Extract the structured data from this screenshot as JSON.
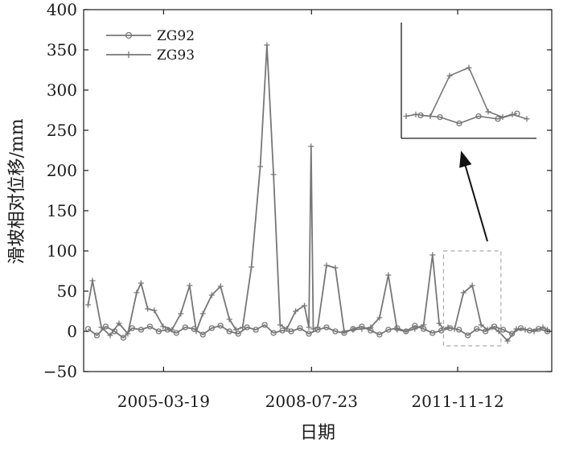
{
  "chart_data": {
    "type": "line",
    "title": "",
    "xlabel": "日期",
    "ylabel": "滑坡相对位移/mm",
    "ylim": [
      -50,
      400
    ],
    "xlim": [
      2003.4,
      2014.0
    ],
    "y_ticks": [
      -50,
      0,
      50,
      100,
      150,
      200,
      250,
      300,
      350,
      400
    ],
    "y_tick_labels": [
      "−50",
      "0",
      "50",
      "100",
      "150",
      "200",
      "250",
      "300",
      "350",
      "400"
    ],
    "x_ticks": [
      2005.21,
      2008.56,
      2011.87
    ],
    "x_tick_labels": [
      "2005-03-19",
      "2008-07-23",
      "2011-11-12"
    ],
    "grid": false,
    "legend_position": "top-left",
    "colors": {
      "series": "#777777",
      "axis": "#1a1a1a",
      "highlight_box": "#aaaaaa",
      "arrow": "#111111"
    },
    "series": [
      {
        "name": "ZG92",
        "marker": "circle",
        "x": [
          2003.5,
          2003.7,
          2003.9,
          2004.1,
          2004.3,
          2004.5,
          2004.7,
          2004.9,
          2005.1,
          2005.3,
          2005.5,
          2005.7,
          2005.9,
          2006.1,
          2006.3,
          2006.5,
          2006.7,
          2006.9,
          2007.1,
          2007.3,
          2007.5,
          2007.7,
          2007.9,
          2008.1,
          2008.3,
          2008.5,
          2008.7,
          2008.9,
          2009.1,
          2009.3,
          2009.5,
          2009.7,
          2009.9,
          2010.1,
          2010.3,
          2010.5,
          2010.7,
          2010.9,
          2011.1,
          2011.3,
          2011.5,
          2011.7,
          2011.9,
          2012.1,
          2012.3,
          2012.5,
          2012.7,
          2012.9,
          2013.1,
          2013.3,
          2013.5,
          2013.7,
          2013.9
        ],
        "values": [
          3,
          -5,
          6,
          0,
          -8,
          4,
          2,
          6,
          0,
          2,
          -2,
          5,
          3,
          -4,
          4,
          7,
          0,
          -3,
          5,
          2,
          8,
          -2,
          1,
          0,
          4,
          -3,
          2,
          5,
          0,
          -2,
          3,
          6,
          1,
          -4,
          2,
          4,
          0,
          7,
          3,
          -2,
          1,
          4,
          2,
          -5,
          3,
          0,
          6,
          2,
          -3,
          4,
          1,
          3,
          0
        ]
      },
      {
        "name": "ZG93",
        "marker": "plus",
        "x": [
          2003.5,
          2003.6,
          2003.8,
          2004.0,
          2004.2,
          2004.4,
          2004.6,
          2004.7,
          2004.85,
          2005.0,
          2005.2,
          2005.4,
          2005.6,
          2005.8,
          2005.95,
          2006.1,
          2006.3,
          2006.5,
          2006.7,
          2006.85,
          2007.0,
          2007.2,
          2007.4,
          2007.55,
          2007.7,
          2007.85,
          2008.0,
          2008.2,
          2008.4,
          2008.5,
          2008.55,
          2008.6,
          2008.7,
          2008.9,
          2009.1,
          2009.3,
          2009.5,
          2009.7,
          2009.9,
          2010.1,
          2010.3,
          2010.5,
          2010.7,
          2010.9,
          2011.1,
          2011.3,
          2011.45,
          2011.55,
          2011.65,
          2011.8,
          2012.0,
          2012.2,
          2012.4,
          2012.55,
          2012.65,
          2012.8,
          2013.0,
          2013.2,
          2013.4,
          2013.6,
          2013.8,
          2013.9
        ],
        "values": [
          33,
          63,
          5,
          -5,
          10,
          -3,
          48,
          60,
          28,
          26,
          6,
          2,
          22,
          57,
          0,
          22,
          45,
          56,
          15,
          2,
          5,
          80,
          205,
          356,
          195,
          8,
          3,
          25,
          32,
          5,
          230,
          3,
          5,
          82,
          79,
          0,
          2,
          3,
          5,
          17,
          70,
          2,
          0,
          3,
          8,
          95,
          10,
          3,
          5,
          3,
          48,
          57,
          8,
          2,
          5,
          0,
          -12,
          3,
          2,
          0,
          5,
          2
        ]
      }
    ],
    "annotation_box_x": [
      2011.55,
      2012.85
    ],
    "annotation_box_y": [
      -18,
      100
    ]
  }
}
